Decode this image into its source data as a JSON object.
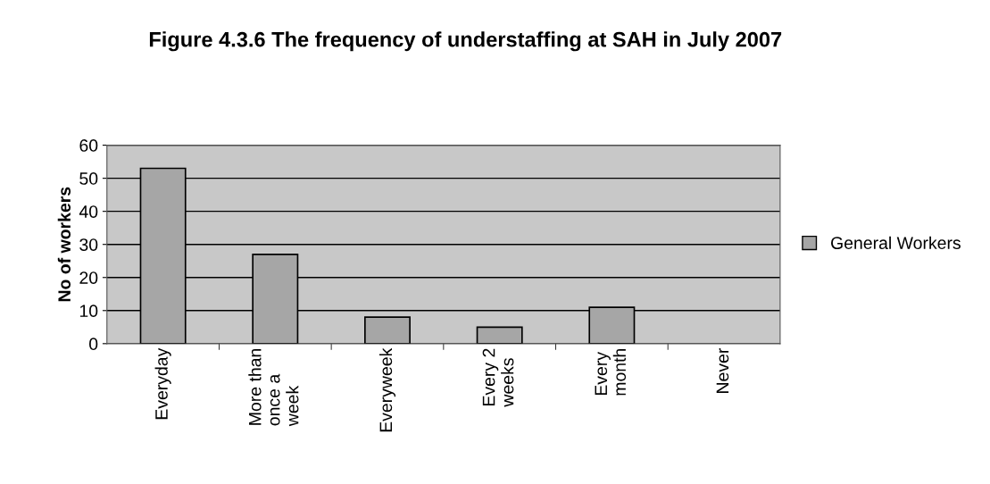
{
  "chart_data": {
    "type": "bar",
    "title": "Figure 4.3.6 The frequency of understaffing at SAH in July 2007",
    "ylabel": "No of workers",
    "categories": [
      "Everyday",
      "More than\nonce a\nweek",
      "Everyweek",
      "Every 2\nweeks",
      "Every\nmonth",
      "Never"
    ],
    "series": [
      {
        "name": "General Workers",
        "color": "#a6a6a6",
        "values": [
          53,
          27,
          8,
          5,
          11,
          0
        ]
      }
    ],
    "ylim": [
      0,
      60
    ],
    "yticks": [
      0,
      10,
      20,
      30,
      40,
      50,
      60
    ],
    "grid": "y",
    "legend": "right"
  }
}
